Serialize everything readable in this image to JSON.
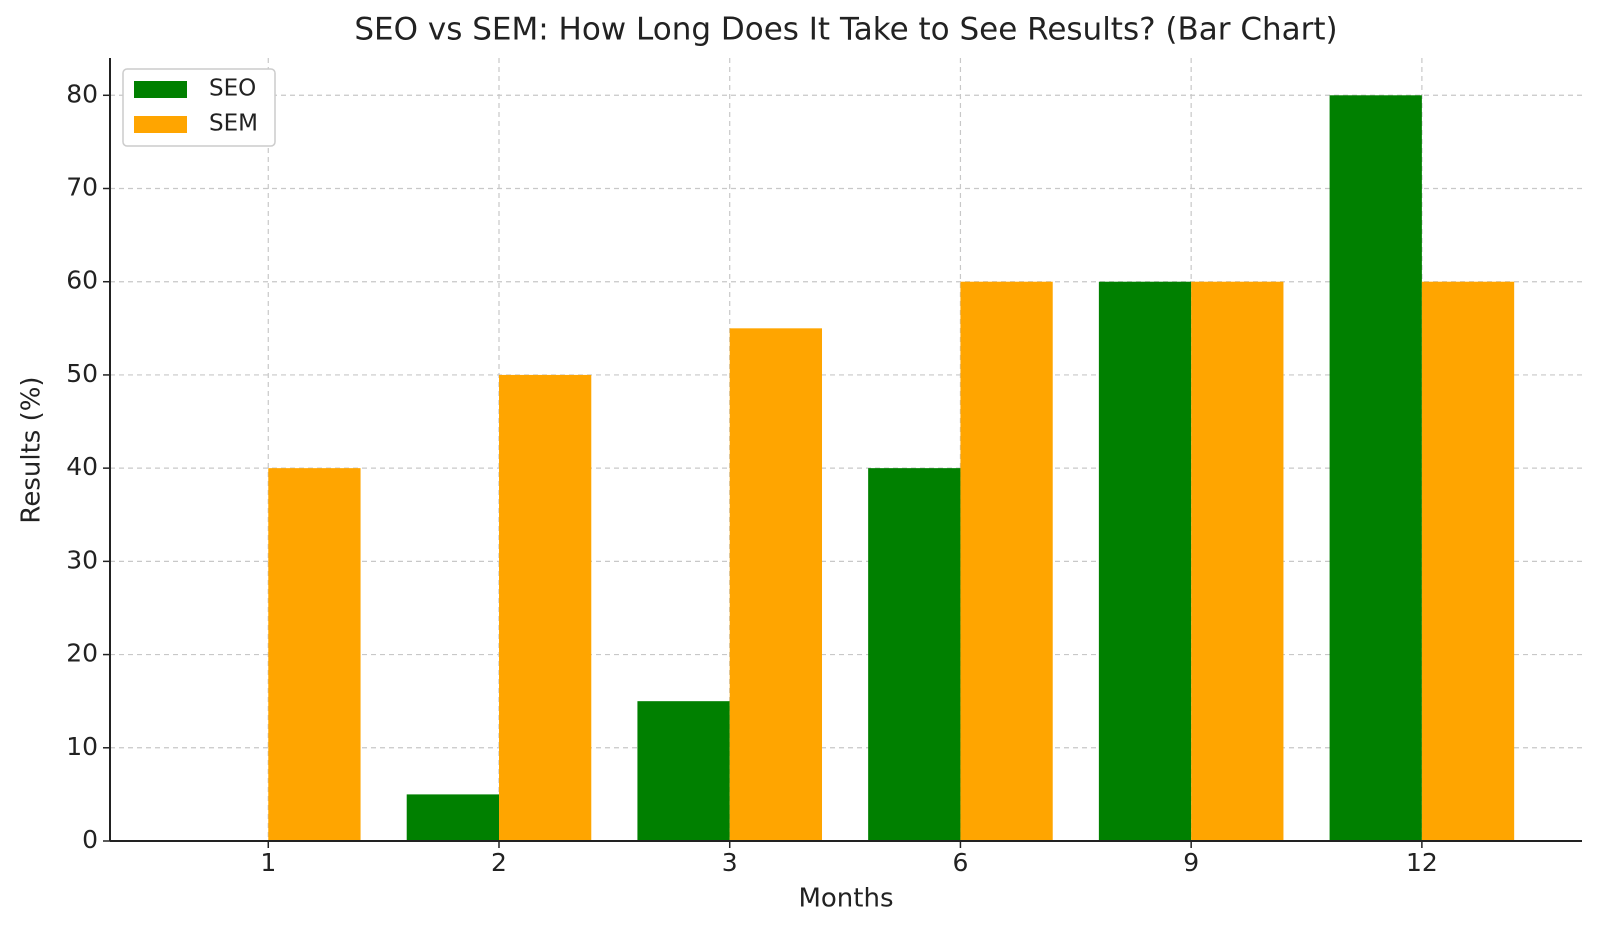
{
  "chart_data": {
    "type": "bar",
    "title": "SEO vs SEM: How Long Does It Take to See Results? (Bar Chart)",
    "x_label": "Months",
    "y_label": "Results (%)",
    "categories": [
      "1",
      "2",
      "3",
      "6",
      "9",
      "12"
    ],
    "series": [
      {
        "name": "SEO",
        "color": "#008000",
        "values": [
          0,
          5,
          15,
          40,
          60,
          80
        ]
      },
      {
        "name": "SEM",
        "color": "#ffa500",
        "values": [
          40,
          50,
          55,
          60,
          60,
          60
        ]
      }
    ],
    "ylim": [
      0,
      84
    ],
    "yticks": [
      0,
      10,
      20,
      30,
      40,
      50,
      60,
      70,
      80
    ],
    "grid": true,
    "legend": "upper left"
  }
}
